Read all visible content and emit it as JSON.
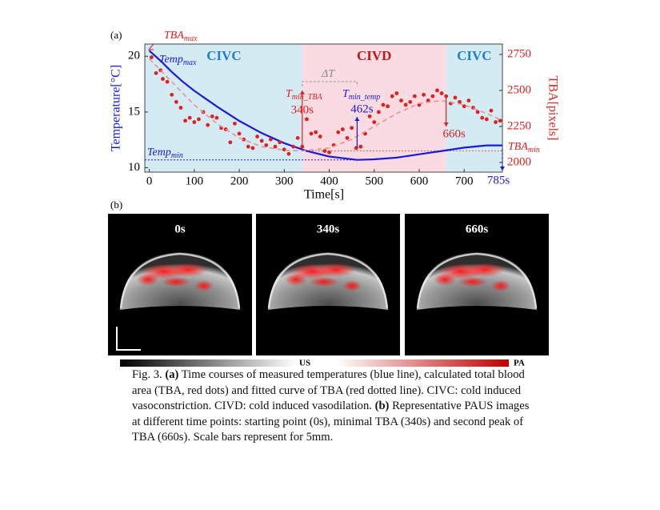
{
  "panel_a": {
    "label": "(a)"
  },
  "chart_data": {
    "type": "line",
    "xlabel": "Time[s]",
    "ylabel": "Temperature[°C]",
    "y2label": "TBA[pixels]",
    "xlim": [
      -10,
      785
    ],
    "xticks": [
      0,
      100,
      200,
      300,
      400,
      500,
      600,
      700
    ],
    "ylim": [
      9.6,
      21.1
    ],
    "yticks": [
      10,
      15,
      20
    ],
    "y2lim": [
      1933,
      2822
    ],
    "y2ticks": [
      2000,
      2250,
      2500,
      2750
    ],
    "regions": [
      {
        "label": "CIVC",
        "range": [
          0,
          340
        ],
        "color": "#d4ebf4",
        "label_color": "#1f7fd4"
      },
      {
        "label": "CIVD",
        "range": [
          340,
          660
        ],
        "color": "#fadbe2",
        "label_color": "#c01818"
      },
      {
        "label": "CIVC",
        "range": [
          660,
          785
        ],
        "color": "#d4ebf4",
        "label_color": "#1f7fd4"
      }
    ],
    "series": [
      {
        "color": "#1a1adb",
        "style": "line",
        "x": [
          0,
          25,
          50,
          75,
          100,
          150,
          200,
          250,
          300,
          350,
          400,
          462,
          500,
          550,
          600,
          650,
          700,
          750,
          785
        ],
        "values": [
          20.5,
          19.6,
          18.6,
          17.7,
          16.9,
          15.5,
          14.2,
          13.1,
          12.2,
          11.5,
          11.0,
          10.7,
          10.75,
          10.9,
          11.2,
          11.5,
          11.8,
          12.0,
          12.0
        ]
      },
      {
        "color": "#e02020",
        "style": "dots",
        "axis": "y2",
        "x": [
          5,
          15,
          25,
          30,
          40,
          50,
          60,
          70,
          80,
          90,
          100,
          110,
          120,
          130,
          140,
          150,
          160,
          170,
          180,
          190,
          200,
          210,
          220,
          230,
          240,
          250,
          260,
          270,
          280,
          290,
          300,
          310,
          320,
          330,
          340,
          350,
          360,
          370,
          380,
          390,
          400,
          410,
          420,
          430,
          440,
          450,
          460,
          470,
          480,
          490,
          500,
          510,
          520,
          530,
          540,
          550,
          560,
          570,
          580,
          590,
          600,
          610,
          620,
          630,
          640,
          650,
          660,
          670,
          680,
          690,
          700,
          710,
          720,
          730,
          740,
          750,
          760,
          770,
          780
        ],
        "values": [
          2730,
          2620,
          2640,
          2580,
          2560,
          2470,
          2420,
          2380,
          2290,
          2310,
          2280,
          2300,
          2350,
          2260,
          2320,
          2310,
          2240,
          2230,
          2140,
          2270,
          2200,
          2160,
          2110,
          2100,
          2180,
          2150,
          2120,
          2160,
          2110,
          2140,
          2090,
          2060,
          2110,
          2170,
          2110,
          2300,
          2200,
          2210,
          2180,
          2080,
          2070,
          2120,
          2210,
          2230,
          2170,
          2240,
          2100,
          2110,
          2200,
          2320,
          2280,
          2350,
          2400,
          2390,
          2460,
          2480,
          2430,
          2400,
          2420,
          2460,
          2400,
          2470,
          2430,
          2460,
          2500,
          2480,
          2460,
          2410,
          2450,
          2420,
          2390,
          2430,
          2380,
          2350,
          2310,
          2300,
          2360,
          2280,
          2290
        ]
      },
      {
        "color": "#ec9090",
        "style": "dashed",
        "axis": "y2",
        "x": [
          0,
          50,
          100,
          150,
          200,
          250,
          300,
          340,
          400,
          450,
          500,
          550,
          600,
          650,
          700,
          750,
          785
        ],
        "values": [
          2720,
          2560,
          2400,
          2270,
          2170,
          2110,
          2085,
          2080,
          2100,
          2160,
          2250,
          2340,
          2410,
          2430,
          2400,
          2340,
          2290
        ]
      }
    ],
    "annotations": [
      {
        "text": "TBA",
        "sub": "max",
        "color": "#e02020"
      },
      {
        "text": "Temp",
        "sub": "max",
        "color": "#1a1adb"
      },
      {
        "text": "Temp",
        "sub": "min",
        "color": "#1a1adb"
      },
      {
        "text": "T",
        "sub": "min_TBA",
        "color": "#e02020"
      },
      {
        "text": "ΔT",
        "color": "#888888"
      },
      {
        "text": "T",
        "sub": "min_temp",
        "color": "#1a1adb"
      },
      {
        "text": "TBA",
        "sub": "min",
        "color": "#e02020"
      }
    ],
    "markers": [
      {
        "value": 340,
        "label": "340s",
        "color": "#e02020"
      },
      {
        "value": 462,
        "label": "462s",
        "color": "#1a1adb"
      },
      {
        "value": 660,
        "label": "660s",
        "color": "#e02020"
      },
      {
        "value": 785,
        "label": "785s",
        "color": "#1a1adb"
      }
    ]
  },
  "panel_b": {
    "label": "(b)",
    "images": [
      {
        "label": "0s"
      },
      {
        "label": "340s"
      },
      {
        "label": "660s"
      }
    ],
    "colorbars": [
      {
        "label": "US"
      },
      {
        "label": "PA"
      }
    ]
  },
  "caption": [
    {
      "text": "Fig. 3. "
    },
    {
      "text": "(a)",
      "bold": true
    },
    {
      "text": " Time courses of measured temperatures (blue line), calculated total blood area (TBA, red dots) and fitted curve of TBA (red dotted line). CIVC: cold induced vasoconstriction. CIVD: cold induced vasodilation. "
    },
    {
      "text": "(b)",
      "bold": true
    },
    {
      "text": " Representative PAUS images at different time points: starting point (0s), minimal TBA (340s) and second peak of TBA (660s). Scale bars represent for 5mm."
    }
  ]
}
